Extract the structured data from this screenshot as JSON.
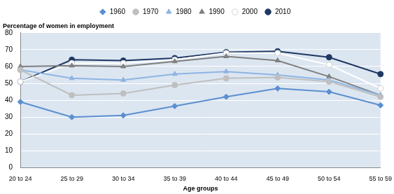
{
  "chart_data": {
    "type": "line",
    "y_label": "Percentage of women in employment",
    "x_label": "Age groups",
    "categories": [
      "20 to 24",
      "25 to 29",
      "30 to 34",
      "35 to 39",
      "40 to 44",
      "45 to 49",
      "50 to 54",
      "55 to 59"
    ],
    "series": [
      {
        "name": "1960",
        "color": "#5b8fd0",
        "marker": "diamond",
        "values": [
          39,
          30,
          31,
          36.5,
          42,
          47,
          45,
          37
        ]
      },
      {
        "name": "1970",
        "color": "#bfbfbf",
        "marker": "circle",
        "values": [
          58,
          43,
          44,
          49,
          53,
          53.5,
          51,
          42
        ]
      },
      {
        "name": "1980",
        "color": "#8eb4e3",
        "marker": "triangle",
        "values": [
          58,
          53,
          52,
          55.5,
          57,
          55,
          52,
          43
        ]
      },
      {
        "name": "1990",
        "color": "#7f7f7f",
        "marker": "triangle",
        "values": [
          60,
          60.5,
          60,
          63,
          66,
          63.5,
          54,
          43
        ]
      },
      {
        "name": "2000",
        "color": "#ffffff",
        "marker": "circle",
        "values": [
          51,
          62,
          62,
          64,
          68,
          68,
          61,
          47
        ]
      },
      {
        "name": "2010",
        "color": "#1f3864",
        "marker": "circle",
        "values": [
          51,
          64,
          63.5,
          65,
          68.5,
          69,
          65.5,
          55.5
        ]
      }
    ],
    "ylim": [
      0,
      80
    ],
    "yticks": [
      0,
      10,
      20,
      30,
      40,
      50,
      60,
      70,
      80
    ],
    "grid": true,
    "legend": "top"
  }
}
